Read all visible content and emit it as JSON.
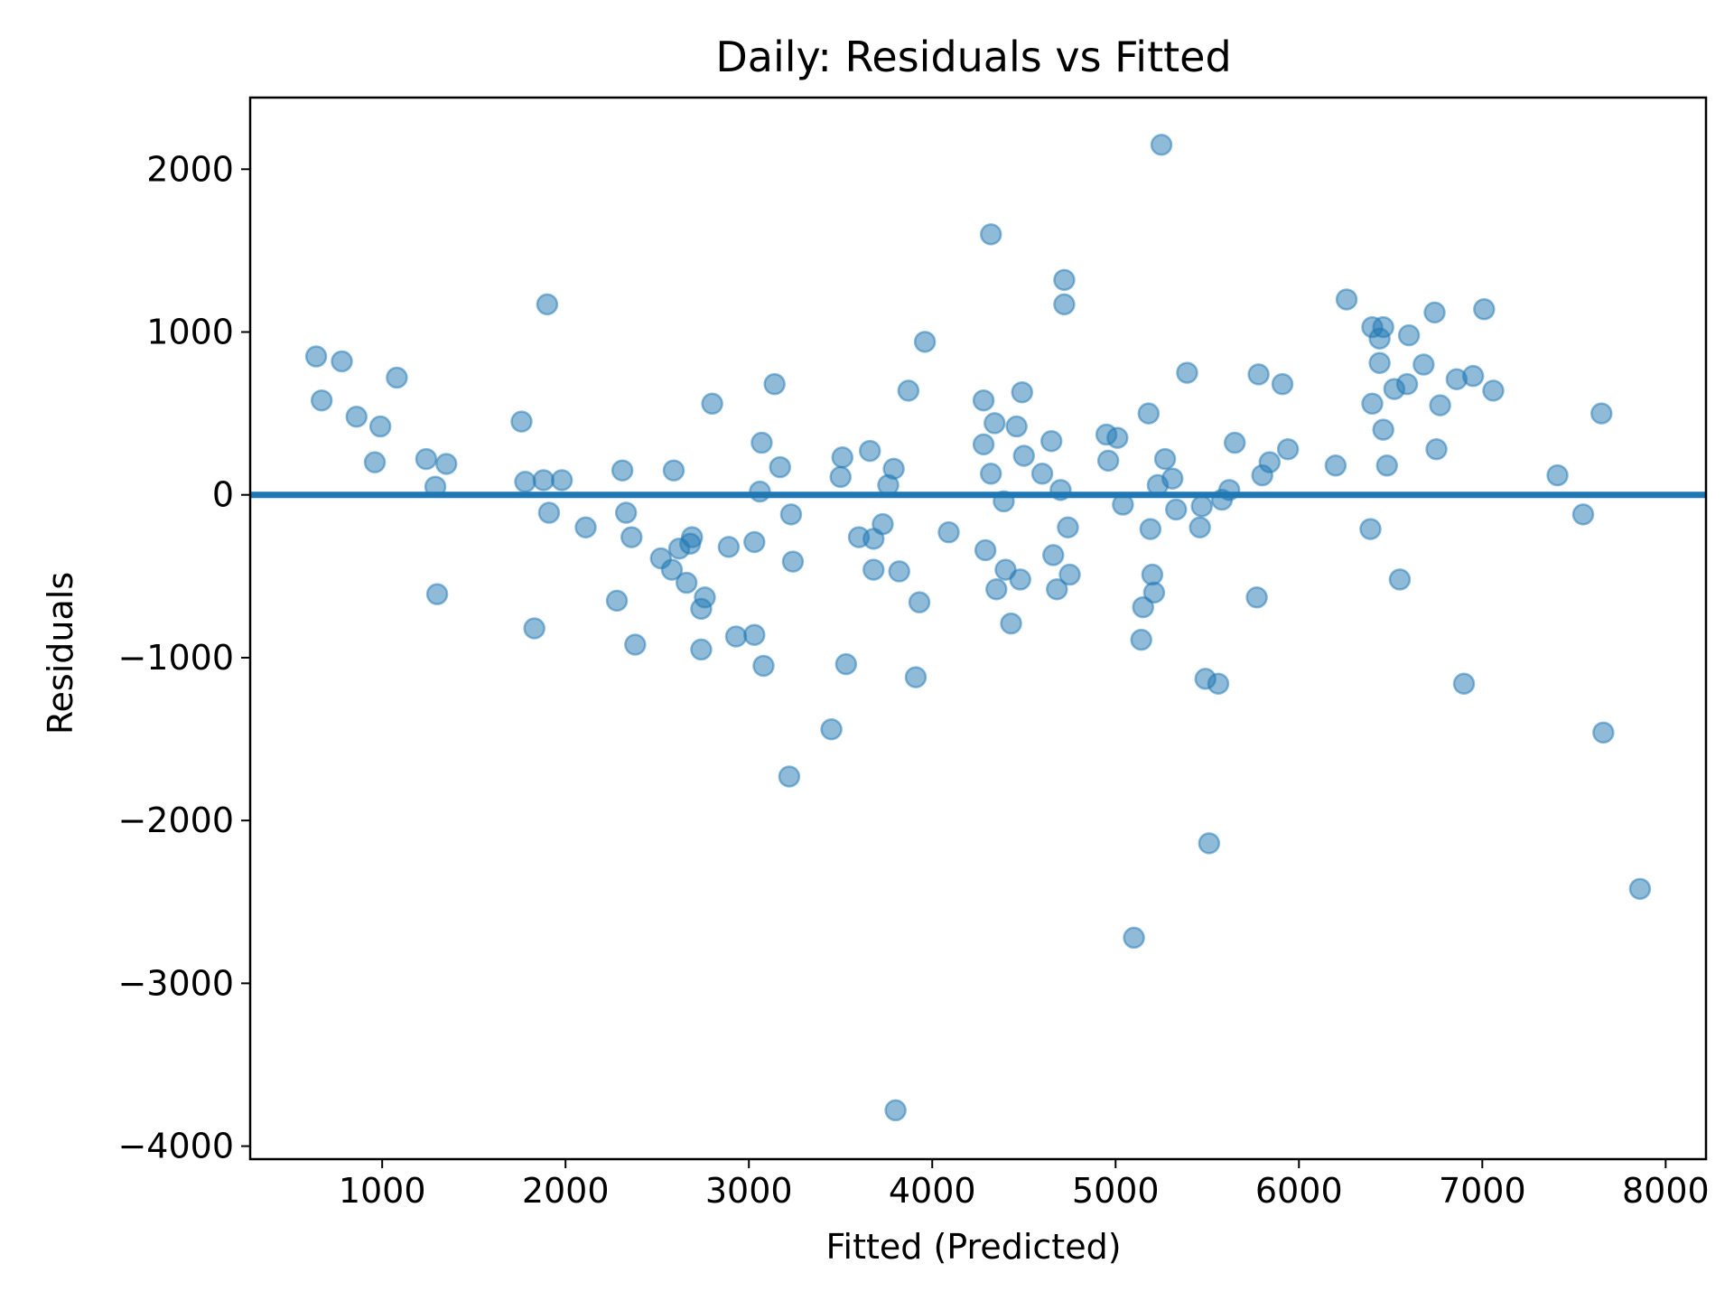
{
  "chart_data": {
    "type": "scatter",
    "title": "Daily: Residuals vs Fitted",
    "xlabel": "Fitted (Predicted)",
    "ylabel": "Residuals",
    "xlim": [
      280,
      8220
    ],
    "ylim": [
      -4080,
      2440
    ],
    "xticks": [
      1000,
      2000,
      3000,
      4000,
      5000,
      6000,
      7000,
      8000
    ],
    "yticks": [
      -4000,
      -3000,
      -2000,
      -1000,
      0,
      1000,
      2000
    ],
    "xtick_labels": [
      "1000",
      "2000",
      "3000",
      "4000",
      "5000",
      "6000",
      "7000",
      "8000"
    ],
    "ytick_labels": [
      "−4000",
      "−3000",
      "−2000",
      "−1000",
      "0",
      "1000",
      "2000"
    ],
    "reference_line_y": 0,
    "grid": false,
    "colors": {
      "points": "#1f77b4",
      "reference_line": "#1f77b4"
    },
    "points": [
      [
        640,
        850
      ],
      [
        670,
        580
      ],
      [
        780,
        820
      ],
      [
        860,
        480
      ],
      [
        960,
        200
      ],
      [
        990,
        420
      ],
      [
        1080,
        720
      ],
      [
        1240,
        220
      ],
      [
        1290,
        50
      ],
      [
        1300,
        -610
      ],
      [
        1350,
        190
      ],
      [
        1760,
        450
      ],
      [
        1780,
        80
      ],
      [
        1830,
        -820
      ],
      [
        1880,
        90
      ],
      [
        1900,
        1170
      ],
      [
        1910,
        -110
      ],
      [
        1980,
        90
      ],
      [
        2110,
        -200
      ],
      [
        2280,
        -650
      ],
      [
        2310,
        150
      ],
      [
        2330,
        -110
      ],
      [
        2360,
        -260
      ],
      [
        2380,
        -920
      ],
      [
        2520,
        -390
      ],
      [
        2580,
        -460
      ],
      [
        2590,
        150
      ],
      [
        2620,
        -330
      ],
      [
        2660,
        -540
      ],
      [
        2680,
        -300
      ],
      [
        2690,
        -260
      ],
      [
        2740,
        -700
      ],
      [
        2760,
        -630
      ],
      [
        2740,
        -950
      ],
      [
        2800,
        560
      ],
      [
        2890,
        -320
      ],
      [
        2930,
        -870
      ],
      [
        3030,
        -860
      ],
      [
        3030,
        -290
      ],
      [
        3060,
        20
      ],
      [
        3070,
        320
      ],
      [
        3080,
        -1050
      ],
      [
        3140,
        680
      ],
      [
        3170,
        170
      ],
      [
        3220,
        -1730
      ],
      [
        3230,
        -120
      ],
      [
        3240,
        -410
      ],
      [
        3450,
        -1440
      ],
      [
        3500,
        110
      ],
      [
        3510,
        230
      ],
      [
        3530,
        -1040
      ],
      [
        3600,
        -260
      ],
      [
        3660,
        270
      ],
      [
        3680,
        -270
      ],
      [
        3680,
        -460
      ],
      [
        3730,
        -180
      ],
      [
        3760,
        60
      ],
      [
        3790,
        160
      ],
      [
        3800,
        -3780
      ],
      [
        3820,
        -470
      ],
      [
        3870,
        640
      ],
      [
        3910,
        -1120
      ],
      [
        3930,
        -660
      ],
      [
        3960,
        940
      ],
      [
        4090,
        -230
      ],
      [
        4280,
        580
      ],
      [
        4280,
        310
      ],
      [
        4290,
        -340
      ],
      [
        4320,
        1600
      ],
      [
        4320,
        130
      ],
      [
        4340,
        440
      ],
      [
        4350,
        -580
      ],
      [
        4390,
        -40
      ],
      [
        4400,
        -460
      ],
      [
        4430,
        -790
      ],
      [
        4460,
        420
      ],
      [
        4480,
        -520
      ],
      [
        4490,
        630
      ],
      [
        4500,
        240
      ],
      [
        4600,
        130
      ],
      [
        4650,
        330
      ],
      [
        4660,
        -370
      ],
      [
        4680,
        -580
      ],
      [
        4700,
        30
      ],
      [
        4720,
        1320
      ],
      [
        4720,
        1170
      ],
      [
        4740,
        -200
      ],
      [
        4750,
        -490
      ],
      [
        4950,
        370
      ],
      [
        4960,
        210
      ],
      [
        5010,
        350
      ],
      [
        5040,
        -60
      ],
      [
        5100,
        -2720
      ],
      [
        5140,
        -890
      ],
      [
        5150,
        -690
      ],
      [
        5180,
        500
      ],
      [
        5190,
        -210
      ],
      [
        5200,
        -490
      ],
      [
        5210,
        -600
      ],
      [
        5230,
        60
      ],
      [
        5250,
        2150
      ],
      [
        5270,
        220
      ],
      [
        5310,
        100
      ],
      [
        5330,
        -90
      ],
      [
        5390,
        750
      ],
      [
        5460,
        -200
      ],
      [
        5470,
        -70
      ],
      [
        5490,
        -1130
      ],
      [
        5510,
        -2140
      ],
      [
        5560,
        -1160
      ],
      [
        5580,
        -30
      ],
      [
        5620,
        30
      ],
      [
        5650,
        320
      ],
      [
        5770,
        -630
      ],
      [
        5780,
        740
      ],
      [
        5800,
        120
      ],
      [
        5840,
        200
      ],
      [
        5910,
        680
      ],
      [
        5940,
        280
      ],
      [
        6200,
        180
      ],
      [
        6260,
        1200
      ],
      [
        6390,
        -210
      ],
      [
        6400,
        1030
      ],
      [
        6400,
        560
      ],
      [
        6440,
        960
      ],
      [
        6440,
        810
      ],
      [
        6460,
        1030
      ],
      [
        6460,
        400
      ],
      [
        6480,
        180
      ],
      [
        6520,
        650
      ],
      [
        6550,
        -520
      ],
      [
        6590,
        680
      ],
      [
        6600,
        980
      ],
      [
        6680,
        800
      ],
      [
        6740,
        1120
      ],
      [
        6750,
        280
      ],
      [
        6770,
        550
      ],
      [
        6860,
        710
      ],
      [
        6900,
        -1160
      ],
      [
        6950,
        730
      ],
      [
        7010,
        1140
      ],
      [
        7060,
        640
      ],
      [
        7410,
        120
      ],
      [
        7550,
        -120
      ],
      [
        7650,
        500
      ],
      [
        7660,
        -1460
      ],
      [
        7860,
        -2420
      ]
    ]
  }
}
